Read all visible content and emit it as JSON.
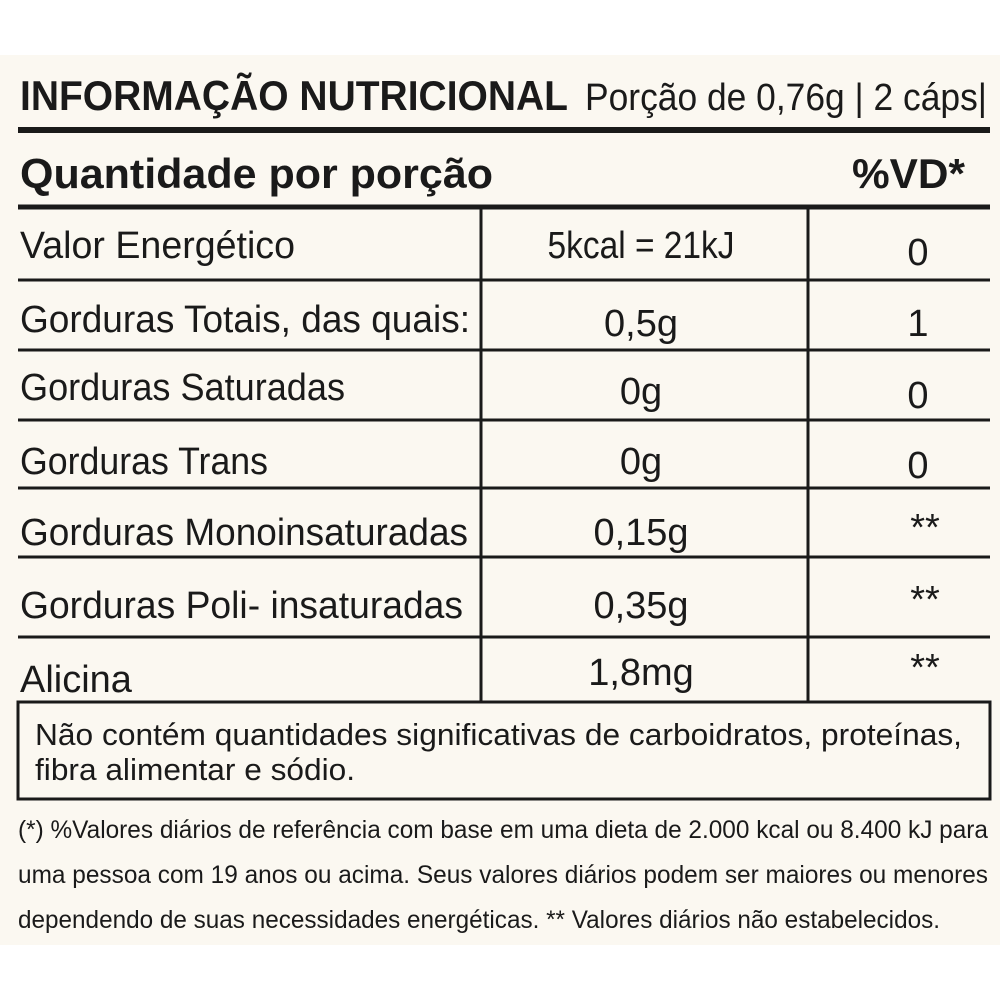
{
  "header": {
    "title": "INFORMAÇÃO NUTRICIONAL",
    "serving": "Porção de 0,76g | 2 cáps|"
  },
  "table": {
    "columns": [
      "Quantidade por porção",
      "%VD*"
    ],
    "rows": [
      [
        "Valor Energético",
        "5kcal = 21kJ",
        "0"
      ],
      [
        "Gorduras Totais, das quais:",
        "0,5g",
        "1"
      ],
      [
        "Gorduras Saturadas",
        "0g",
        "0"
      ],
      [
        "Gorduras Trans",
        "0g",
        "0"
      ],
      [
        "Gorduras Monoinsaturadas",
        "0,15g",
        "**"
      ],
      [
        "Gorduras Poli- insaturadas",
        "0,35g",
        "**"
      ],
      [
        "Alicina",
        "1,8mg",
        "**"
      ]
    ]
  },
  "note": [
    "Não contém quantidades significativas de carboidratos, proteínas,",
    "fibra alimentar e sódio."
  ],
  "footnote": [
    "(*) %Valores diários de referência com base em uma dieta de 2.000 kcal ou 8.400 kJ para",
    "uma pessoa com 19 anos ou acima. Seus valores diários podem ser maiores ou menores",
    "dependendo de suas necessidades energéticas. ** Valores diários não estabelecidos."
  ]
}
